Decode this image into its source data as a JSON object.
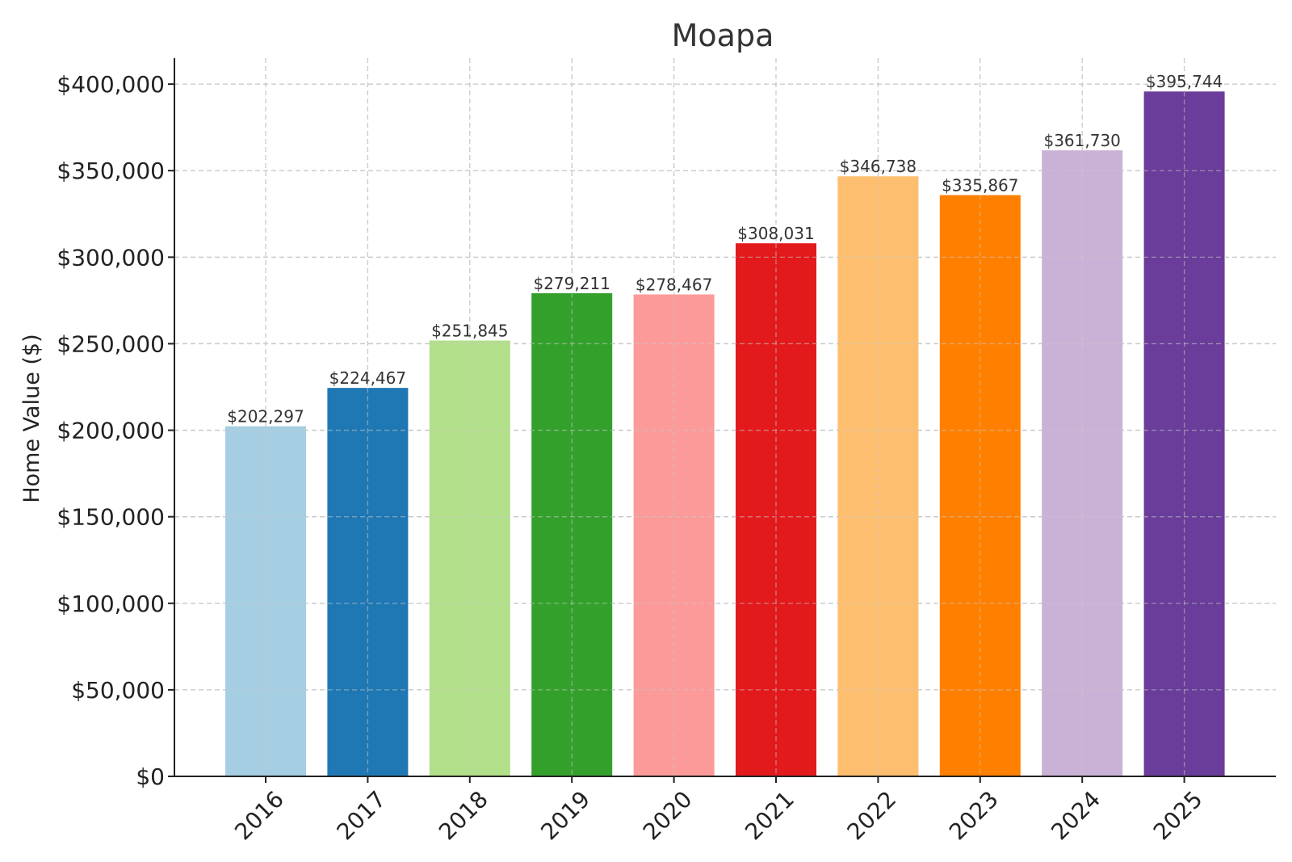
{
  "chart_data": {
    "type": "bar",
    "title": "Moapa",
    "xlabel": "",
    "ylabel": "Home Value ($)",
    "categories": [
      "2016",
      "2017",
      "2018",
      "2019",
      "2020",
      "2021",
      "2022",
      "2023",
      "2024",
      "2025"
    ],
    "values": [
      202297,
      224467,
      251845,
      279211,
      278467,
      308031,
      346738,
      335867,
      361730,
      395744
    ],
    "data_labels": [
      "$202,297",
      "$224,467",
      "$251,845",
      "$279,211",
      "$278,467",
      "$308,031",
      "$346,738",
      "$335,867",
      "$361,730",
      "$395,744"
    ],
    "ylim": [
      0,
      415000
    ],
    "yticks": [
      0,
      50000,
      100000,
      150000,
      200000,
      250000,
      300000,
      350000,
      400000
    ],
    "ytick_labels": [
      "$0",
      "$50,000",
      "$100,000",
      "$150,000",
      "$200,000",
      "$250,000",
      "$300,000",
      "$350,000",
      "$400,000"
    ],
    "grid": true,
    "colors": [
      "#a6cee3",
      "#1f78b4",
      "#b2df8a",
      "#33a02c",
      "#fb9a99",
      "#e31a1c",
      "#fdbf6f",
      "#ff7f00",
      "#cab2d6",
      "#6a3d9a"
    ]
  }
}
